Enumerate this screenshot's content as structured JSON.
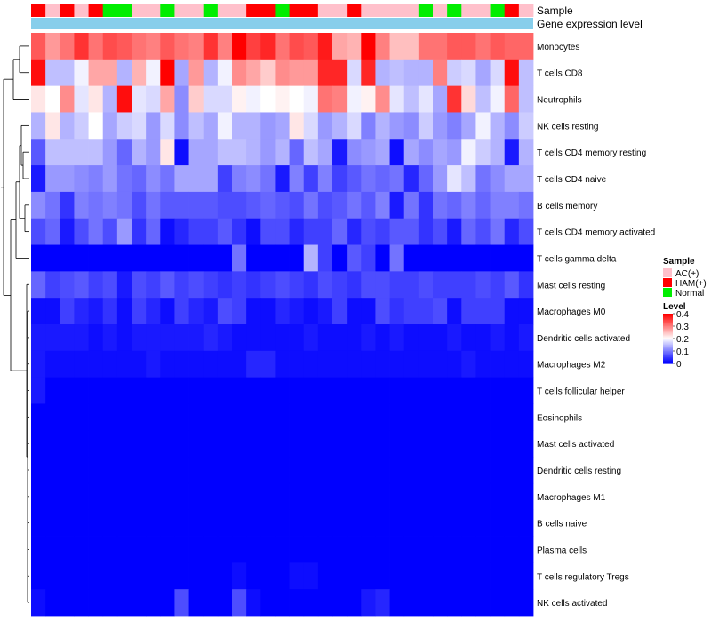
{
  "chart_data": {
    "type": "heatmap",
    "annotation_tracks": [
      "Sample",
      "Gene expression level"
    ],
    "sample_groups": [
      "HAM(+)",
      "AC(+)",
      "HAM(+)",
      "AC(+)",
      "HAM(+)",
      "Normal",
      "Normal",
      "AC(+)",
      "AC(+)",
      "Normal",
      "AC(+)",
      "AC(+)",
      "Normal",
      "AC(+)",
      "AC(+)",
      "HAM(+)",
      "HAM(+)",
      "Normal",
      "HAM(+)",
      "HAM(+)",
      "AC(+)",
      "AC(+)",
      "HAM(+)",
      "AC(+)",
      "AC(+)",
      "AC(+)",
      "AC(+)",
      "Normal",
      "AC(+)",
      "Normal",
      "AC(+)",
      "AC(+)",
      "Normal",
      "HAM(+)",
      "AC(+)"
    ],
    "rows": [
      "Monocytes",
      "T cells CD8",
      "Neutrophils",
      "NK cells resting",
      "T cells CD4 memory resting",
      "T cells CD4 naive",
      "B cells memory",
      "T cells CD4 memory activated",
      "T cells gamma delta",
      "Mast cells resting",
      "Macrophages M0",
      "Dendritic cells activated",
      "Macrophages M2",
      "T cells follicular helper",
      "Eosinophils",
      "Mast cells activated",
      "Dendritic cells resting",
      "Macrophages M1",
      "B cells naive",
      "Plasma cells",
      "T cells regulatory  Tregs",
      "NK cells activated"
    ],
    "values": [
      [
        0.33,
        0.28,
        0.31,
        0.36,
        0.31,
        0.34,
        0.33,
        0.31,
        0.3,
        0.33,
        0.31,
        0.3,
        0.36,
        0.3,
        0.4,
        0.35,
        0.37,
        0.31,
        0.34,
        0.33,
        0.38,
        0.27,
        0.26,
        0.4,
        0.3,
        0.25,
        0.25,
        0.31,
        0.31,
        0.33,
        0.33,
        0.31,
        0.33,
        0.32,
        0.32
      ],
      [
        0.39,
        0.15,
        0.15,
        0.19,
        0.27,
        0.27,
        0.14,
        0.26,
        0.19,
        0.4,
        0.13,
        0.28,
        0.14,
        0.19,
        0.29,
        0.27,
        0.24,
        0.29,
        0.28,
        0.28,
        0.37,
        0.37,
        0.17,
        0.37,
        0.14,
        0.15,
        0.14,
        0.14,
        0.3,
        0.16,
        0.17,
        0.13,
        0.17,
        0.39,
        0.15
      ],
      [
        0.22,
        0.2,
        0.29,
        0.18,
        0.22,
        0.14,
        0.39,
        0.18,
        0.17,
        0.27,
        0.11,
        0.24,
        0.17,
        0.17,
        0.21,
        0.19,
        0.2,
        0.21,
        0.2,
        0.19,
        0.31,
        0.3,
        0.19,
        0.21,
        0.29,
        0.18,
        0.15,
        0.18,
        0.13,
        0.36,
        0.23,
        0.15,
        0.19,
        0.32,
        0.15
      ],
      [
        0.14,
        0.22,
        0.14,
        0.16,
        0.2,
        0.13,
        0.16,
        0.17,
        0.12,
        0.17,
        0.11,
        0.15,
        0.13,
        0.19,
        0.14,
        0.14,
        0.12,
        0.13,
        0.22,
        0.17,
        0.12,
        0.14,
        0.17,
        0.1,
        0.14,
        0.12,
        0.11,
        0.16,
        0.12,
        0.1,
        0.13,
        0.19,
        0.14,
        0.11,
        0.16
      ],
      [
        0.07,
        0.15,
        0.15,
        0.15,
        0.15,
        0.12,
        0.08,
        0.14,
        0.12,
        0.22,
        0.01,
        0.13,
        0.13,
        0.15,
        0.15,
        0.14,
        0.12,
        0.14,
        0.08,
        0.15,
        0.13,
        0.02,
        0.11,
        0.12,
        0.13,
        0.01,
        0.13,
        0.11,
        0.13,
        0.12,
        0.19,
        0.16,
        0.14,
        0.02,
        0.14
      ],
      [
        0.02,
        0.12,
        0.12,
        0.11,
        0.1,
        0.12,
        0.09,
        0.08,
        0.11,
        0.09,
        0.13,
        0.13,
        0.13,
        0.05,
        0.1,
        0.11,
        0.09,
        0.02,
        0.1,
        0.05,
        0.1,
        0.05,
        0.07,
        0.09,
        0.08,
        0.09,
        0.03,
        0.08,
        0.12,
        0.18,
        0.15,
        0.09,
        0.11,
        0.13,
        0.13
      ],
      [
        0.11,
        0.09,
        0.04,
        0.1,
        0.09,
        0.1,
        0.09,
        0.06,
        0.09,
        0.07,
        0.07,
        0.07,
        0.07,
        0.06,
        0.06,
        0.07,
        0.08,
        0.07,
        0.06,
        0.09,
        0.06,
        0.07,
        0.09,
        0.07,
        0.1,
        0.02,
        0.09,
        0.04,
        0.09,
        0.08,
        0.1,
        0.08,
        0.1,
        0.1,
        0.09
      ],
      [
        0.06,
        0.08,
        0.02,
        0.06,
        0.09,
        0.06,
        0.12,
        0.04,
        0.08,
        0.01,
        0.03,
        0.05,
        0.05,
        0.07,
        0.04,
        0.01,
        0.06,
        0.06,
        0.03,
        0.05,
        0.05,
        0.08,
        0.03,
        0.06,
        0.05,
        0.07,
        0.07,
        0.04,
        0.06,
        0.02,
        0.08,
        0.06,
        0.09,
        0.03,
        0.06
      ],
      [
        0.0,
        0.0,
        0.0,
        0.0,
        0.0,
        0.0,
        0.0,
        0.0,
        0.0,
        0.0,
        0.0,
        0.0,
        0.0,
        0.0,
        0.09,
        0.0,
        0.0,
        0.0,
        0.0,
        0.14,
        0.05,
        0.0,
        0.07,
        0.05,
        0.0,
        0.09,
        0.0,
        0.0,
        0.0,
        0.0,
        0.0,
        0.0,
        0.0,
        0.0,
        0.0
      ],
      [
        0.08,
        0.05,
        0.06,
        0.07,
        0.05,
        0.06,
        0.02,
        0.06,
        0.05,
        0.07,
        0.05,
        0.06,
        0.05,
        0.04,
        0.05,
        0.04,
        0.05,
        0.06,
        0.05,
        0.04,
        0.06,
        0.05,
        0.04,
        0.06,
        0.06,
        0.05,
        0.05,
        0.06,
        0.05,
        0.05,
        0.05,
        0.06,
        0.05,
        0.07,
        0.04
      ],
      [
        0.01,
        0.01,
        0.05,
        0.03,
        0.02,
        0.04,
        0.01,
        0.05,
        0.03,
        0.01,
        0.05,
        0.03,
        0.02,
        0.06,
        0.05,
        0.01,
        0.01,
        0.03,
        0.02,
        0.01,
        0.02,
        0.05,
        0.01,
        0.01,
        0.06,
        0.04,
        0.05,
        0.05,
        0.06,
        0.01,
        0.05,
        0.05,
        0.05,
        0.01,
        0.01
      ],
      [
        0.02,
        0.02,
        0.02,
        0.02,
        0.01,
        0.02,
        0.01,
        0.02,
        0.02,
        0.02,
        0.02,
        0.02,
        0.03,
        0.02,
        0.01,
        0.01,
        0.01,
        0.01,
        0.01,
        0.02,
        0.01,
        0.01,
        0.01,
        0.02,
        0.01,
        0.02,
        0.01,
        0.01,
        0.01,
        0.02,
        0.01,
        0.01,
        0.02,
        0.01,
        0.02
      ],
      [
        0.02,
        0.01,
        0.01,
        0.01,
        0.01,
        0.01,
        0.01,
        0.01,
        0.02,
        0.01,
        0.01,
        0.01,
        0.01,
        0.01,
        0.01,
        0.03,
        0.03,
        0.01,
        0.01,
        0.01,
        0.01,
        0.01,
        0.01,
        0.01,
        0.01,
        0.01,
        0.01,
        0.01,
        0.01,
        0.01,
        0.02,
        0.01,
        0.01,
        0.01,
        0.01
      ],
      [
        0.02,
        0.0,
        0.0,
        0.0,
        0.0,
        0.0,
        0.0,
        0.0,
        0.0,
        0.0,
        0.0,
        0.0,
        0.0,
        0.0,
        0.0,
        0.0,
        0.0,
        0.0,
        0.0,
        0.0,
        0.0,
        0.0,
        0.0,
        0.0,
        0.0,
        0.0,
        0.0,
        0.0,
        0.0,
        0.0,
        0.0,
        0.0,
        0.0,
        0.0,
        0.0
      ],
      [
        0.0,
        0.0,
        0.0,
        0.0,
        0.0,
        0.0,
        0.0,
        0.0,
        0.0,
        0.0,
        0.0,
        0.0,
        0.0,
        0.0,
        0.0,
        0.0,
        0.0,
        0.0,
        0.0,
        0.0,
        0.0,
        0.0,
        0.0,
        0.0,
        0.0,
        0.0,
        0.0,
        0.0,
        0.0,
        0.0,
        0.0,
        0.0,
        0.0,
        0.0,
        0.0
      ],
      [
        0.0,
        0.0,
        0.0,
        0.0,
        0.0,
        0.0,
        0.0,
        0.0,
        0.0,
        0.0,
        0.0,
        0.0,
        0.0,
        0.0,
        0.0,
        0.0,
        0.0,
        0.0,
        0.0,
        0.0,
        0.0,
        0.0,
        0.0,
        0.0,
        0.0,
        0.0,
        0.0,
        0.0,
        0.0,
        0.0,
        0.0,
        0.0,
        0.0,
        0.0,
        0.0
      ],
      [
        0.0,
        0.0,
        0.0,
        0.0,
        0.0,
        0.0,
        0.0,
        0.0,
        0.0,
        0.0,
        0.0,
        0.0,
        0.0,
        0.0,
        0.0,
        0.0,
        0.0,
        0.0,
        0.0,
        0.0,
        0.0,
        0.0,
        0.0,
        0.0,
        0.0,
        0.0,
        0.0,
        0.0,
        0.0,
        0.0,
        0.0,
        0.0,
        0.0,
        0.0,
        0.0
      ],
      [
        0.0,
        0.0,
        0.0,
        0.0,
        0.0,
        0.0,
        0.0,
        0.0,
        0.0,
        0.0,
        0.0,
        0.0,
        0.0,
        0.0,
        0.0,
        0.0,
        0.0,
        0.0,
        0.0,
        0.0,
        0.0,
        0.0,
        0.0,
        0.0,
        0.0,
        0.0,
        0.0,
        0.0,
        0.0,
        0.0,
        0.0,
        0.0,
        0.0,
        0.0,
        0.0
      ],
      [
        0.0,
        0.0,
        0.0,
        0.0,
        0.0,
        0.0,
        0.0,
        0.0,
        0.0,
        0.0,
        0.0,
        0.0,
        0.0,
        0.0,
        0.0,
        0.0,
        0.0,
        0.0,
        0.0,
        0.0,
        0.0,
        0.0,
        0.0,
        0.0,
        0.0,
        0.0,
        0.0,
        0.0,
        0.0,
        0.0,
        0.0,
        0.0,
        0.0,
        0.0,
        0.0
      ],
      [
        0.0,
        0.0,
        0.0,
        0.0,
        0.0,
        0.0,
        0.0,
        0.0,
        0.0,
        0.0,
        0.0,
        0.0,
        0.0,
        0.0,
        0.0,
        0.0,
        0.0,
        0.0,
        0.0,
        0.0,
        0.0,
        0.0,
        0.0,
        0.0,
        0.0,
        0.0,
        0.0,
        0.0,
        0.0,
        0.0,
        0.0,
        0.0,
        0.0,
        0.0,
        0.0
      ],
      [
        0.0,
        0.0,
        0.0,
        0.0,
        0.0,
        0.0,
        0.0,
        0.0,
        0.0,
        0.0,
        0.0,
        0.0,
        0.0,
        0.0,
        0.01,
        0.0,
        0.0,
        0.0,
        0.01,
        0.01,
        0.0,
        0.0,
        0.0,
        0.0,
        0.0,
        0.0,
        0.0,
        0.0,
        0.0,
        0.0,
        0.0,
        0.0,
        0.0,
        0.0,
        0.0
      ],
      [
        0.01,
        0.0,
        0.0,
        0.0,
        0.0,
        0.0,
        0.0,
        0.0,
        0.0,
        0.0,
        0.06,
        0.0,
        0.0,
        0.0,
        0.06,
        0.01,
        0.0,
        0.0,
        0.0,
        0.0,
        0.0,
        0.0,
        0.0,
        0.02,
        0.03,
        0.0,
        0.0,
        0.0,
        0.0,
        0.0,
        0.0,
        0.0,
        0.0,
        0.0,
        0.0
      ]
    ],
    "legend_sample": {
      "title": "Sample",
      "items": [
        {
          "label": "AC(+)",
          "color": "#ffc0cb"
        },
        {
          "label": "HAM(+)",
          "color": "#ff0000"
        },
        {
          "label": "Normal",
          "color": "#00ee00"
        }
      ]
    },
    "legend_level": {
      "title": "Level",
      "ticks": [
        "0.4",
        "0.3",
        "0.2",
        "0.1",
        "0"
      ],
      "range": [
        0,
        0.4
      ]
    },
    "colors": {
      "low": "#0000ff",
      "mid": "#ffffff",
      "high": "#ff0000",
      "mid_value": 0.2,
      "expression_bar": "#87ceeb"
    }
  }
}
